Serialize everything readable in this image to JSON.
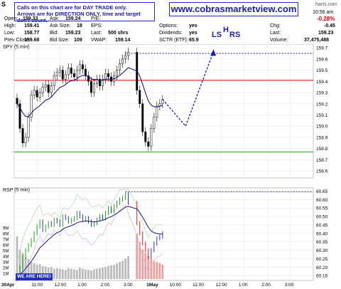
{
  "header": {
    "symbol": "S",
    "callout_line1": "Calls on this chart are for DAY TRADE only.",
    "callout_line2": "Arrows are for DIRECTION ONLY, time and target don't count.",
    "brand": "www.cobrasmarketview.com",
    "site_fragment": "harts.com",
    "time": "10:56 am",
    "pct_change": "-0.28%"
  },
  "quote": {
    "open_label": "Open:",
    "open": "159.33",
    "high_label": "High:",
    "high": "159.41",
    "low_label": "Low:",
    "low": "158.77",
    "prev_label": "Prev Close:",
    "prev": "159.68",
    "ask_label": "Ask:",
    "ask": "159.24",
    "asksize_label": "Ask Size:",
    "asksize": "18",
    "bid_label": "Bid:",
    "bid": "159.23",
    "bidsize_label": "Bid Size:",
    "bidsize": "109",
    "pe_label": "P/E:",
    "pe": "",
    "eps_label": "EPS:",
    "eps": "",
    "last_label": "Last:",
    "last": "500 shrs",
    "vwap_label": "VWAP:",
    "vwap": "159.14",
    "options_label": "Options:",
    "options": "yes",
    "div_label": "Dividends:",
    "div": "yes",
    "sctr_label": "SCTR (ETF):",
    "sctr": "65.9",
    "chg_label": "Chg:",
    "chg": "-0.45",
    "last2_label": "Last:",
    "last2": "159.23",
    "vol_label": "Volume:",
    "vol": "37,475,488"
  },
  "annotations": {
    "ls": "LS",
    "h": "H",
    "rs": "RS",
    "we_are_here": "WE ARE HERE!"
  },
  "colors": {
    "arrow": "#1a1ab8",
    "resistance": "#e00000",
    "support": "#00a000",
    "ma": "#1a1a8c"
  },
  "chart_data": [
    {
      "type": "candlestick",
      "title": "SPY (5 min)",
      "ylim": [
        158.55,
        159.72
      ],
      "yticks": [
        158.6,
        158.7,
        158.8,
        158.9,
        159.0,
        159.1,
        159.2,
        159.3,
        159.4,
        159.5,
        159.6,
        159.7
      ],
      "xticks": [
        "30Apr",
        "11:00",
        "12:00",
        "1:00",
        "2:00",
        "3:00",
        "1May",
        "10:00",
        "11:00",
        "12:00",
        "1:00",
        "2:00",
        "3:00"
      ],
      "hlines": [
        {
          "name": "resistance",
          "value": 159.41,
          "color": "#e00000"
        },
        {
          "name": "high-dotted",
          "value": 159.65,
          "color": "#1a1ab8"
        },
        {
          "name": "support",
          "value": 158.77,
          "color": "#00a000"
        }
      ],
      "close": [
        159.2,
        158.98,
        158.85,
        158.9,
        159.08,
        159.28,
        159.32,
        159.26,
        159.3,
        159.35,
        159.37,
        159.3,
        159.36,
        159.45,
        159.48,
        159.5,
        159.42,
        159.46,
        159.52,
        159.47,
        159.44,
        159.5,
        159.55,
        159.51,
        159.45,
        159.4,
        159.3,
        159.38,
        159.42,
        159.36,
        159.42,
        159.47,
        159.44,
        159.4,
        159.45,
        159.5,
        159.56,
        159.6,
        159.63,
        159.66,
        159.32,
        159.2,
        158.95,
        158.86,
        158.82,
        158.98,
        159.08,
        159.18,
        159.2,
        159.24
      ],
      "projection": [
        [
          0.0,
          159.24
        ],
        [
          1.0,
          159.0
        ],
        [
          2.2,
          159.66
        ]
      ]
    },
    {
      "type": "candlestick-with-volume",
      "title": "RSP (5 min)",
      "ylim": [
        60.13,
        60.66
      ],
      "yticks": [
        60.15,
        60.2,
        60.25,
        60.3,
        60.35,
        60.4,
        60.45,
        60.5,
        60.55,
        60.6,
        60.65
      ],
      "volume_ticks": [
        "1M",
        "2M",
        "3M",
        "4M",
        "5M",
        "6M",
        "7M",
        "8M",
        "9M"
      ],
      "close": [
        60.15,
        60.2,
        60.26,
        60.3,
        60.33,
        60.36,
        60.4,
        60.44,
        60.47,
        60.42,
        60.44,
        60.46,
        60.45,
        60.48,
        60.47,
        60.45,
        60.5,
        60.49,
        60.47,
        60.48,
        60.49,
        60.52,
        60.5,
        60.48,
        60.49,
        60.47,
        60.45,
        60.46,
        60.48,
        60.5,
        60.49,
        60.52,
        60.55,
        60.53,
        60.56,
        60.58,
        60.6,
        60.61,
        60.63,
        60.58,
        60.46,
        60.4,
        60.34,
        60.3,
        60.26,
        60.3,
        60.34,
        60.37,
        60.38,
        60.4
      ],
      "volume_m": [
        7.5,
        5.2,
        4.6,
        3.8,
        3.5,
        3.0,
        2.8,
        2.5,
        2.6,
        2.3,
        2.2,
        2.0,
        2.1,
        1.8,
        1.9,
        1.8,
        1.7,
        1.6,
        1.9,
        1.8,
        1.7,
        1.6,
        2.0,
        1.8,
        1.7,
        1.6,
        1.5,
        1.7,
        1.8,
        1.9,
        2.0,
        2.1,
        2.3,
        2.4,
        2.5,
        2.8,
        3.0,
        3.2,
        3.6,
        4.0,
        8.0,
        6.5,
        5.2,
        4.6,
        4.0,
        3.5,
        3.2,
        3.0,
        2.8,
        2.5
      ]
    }
  ]
}
